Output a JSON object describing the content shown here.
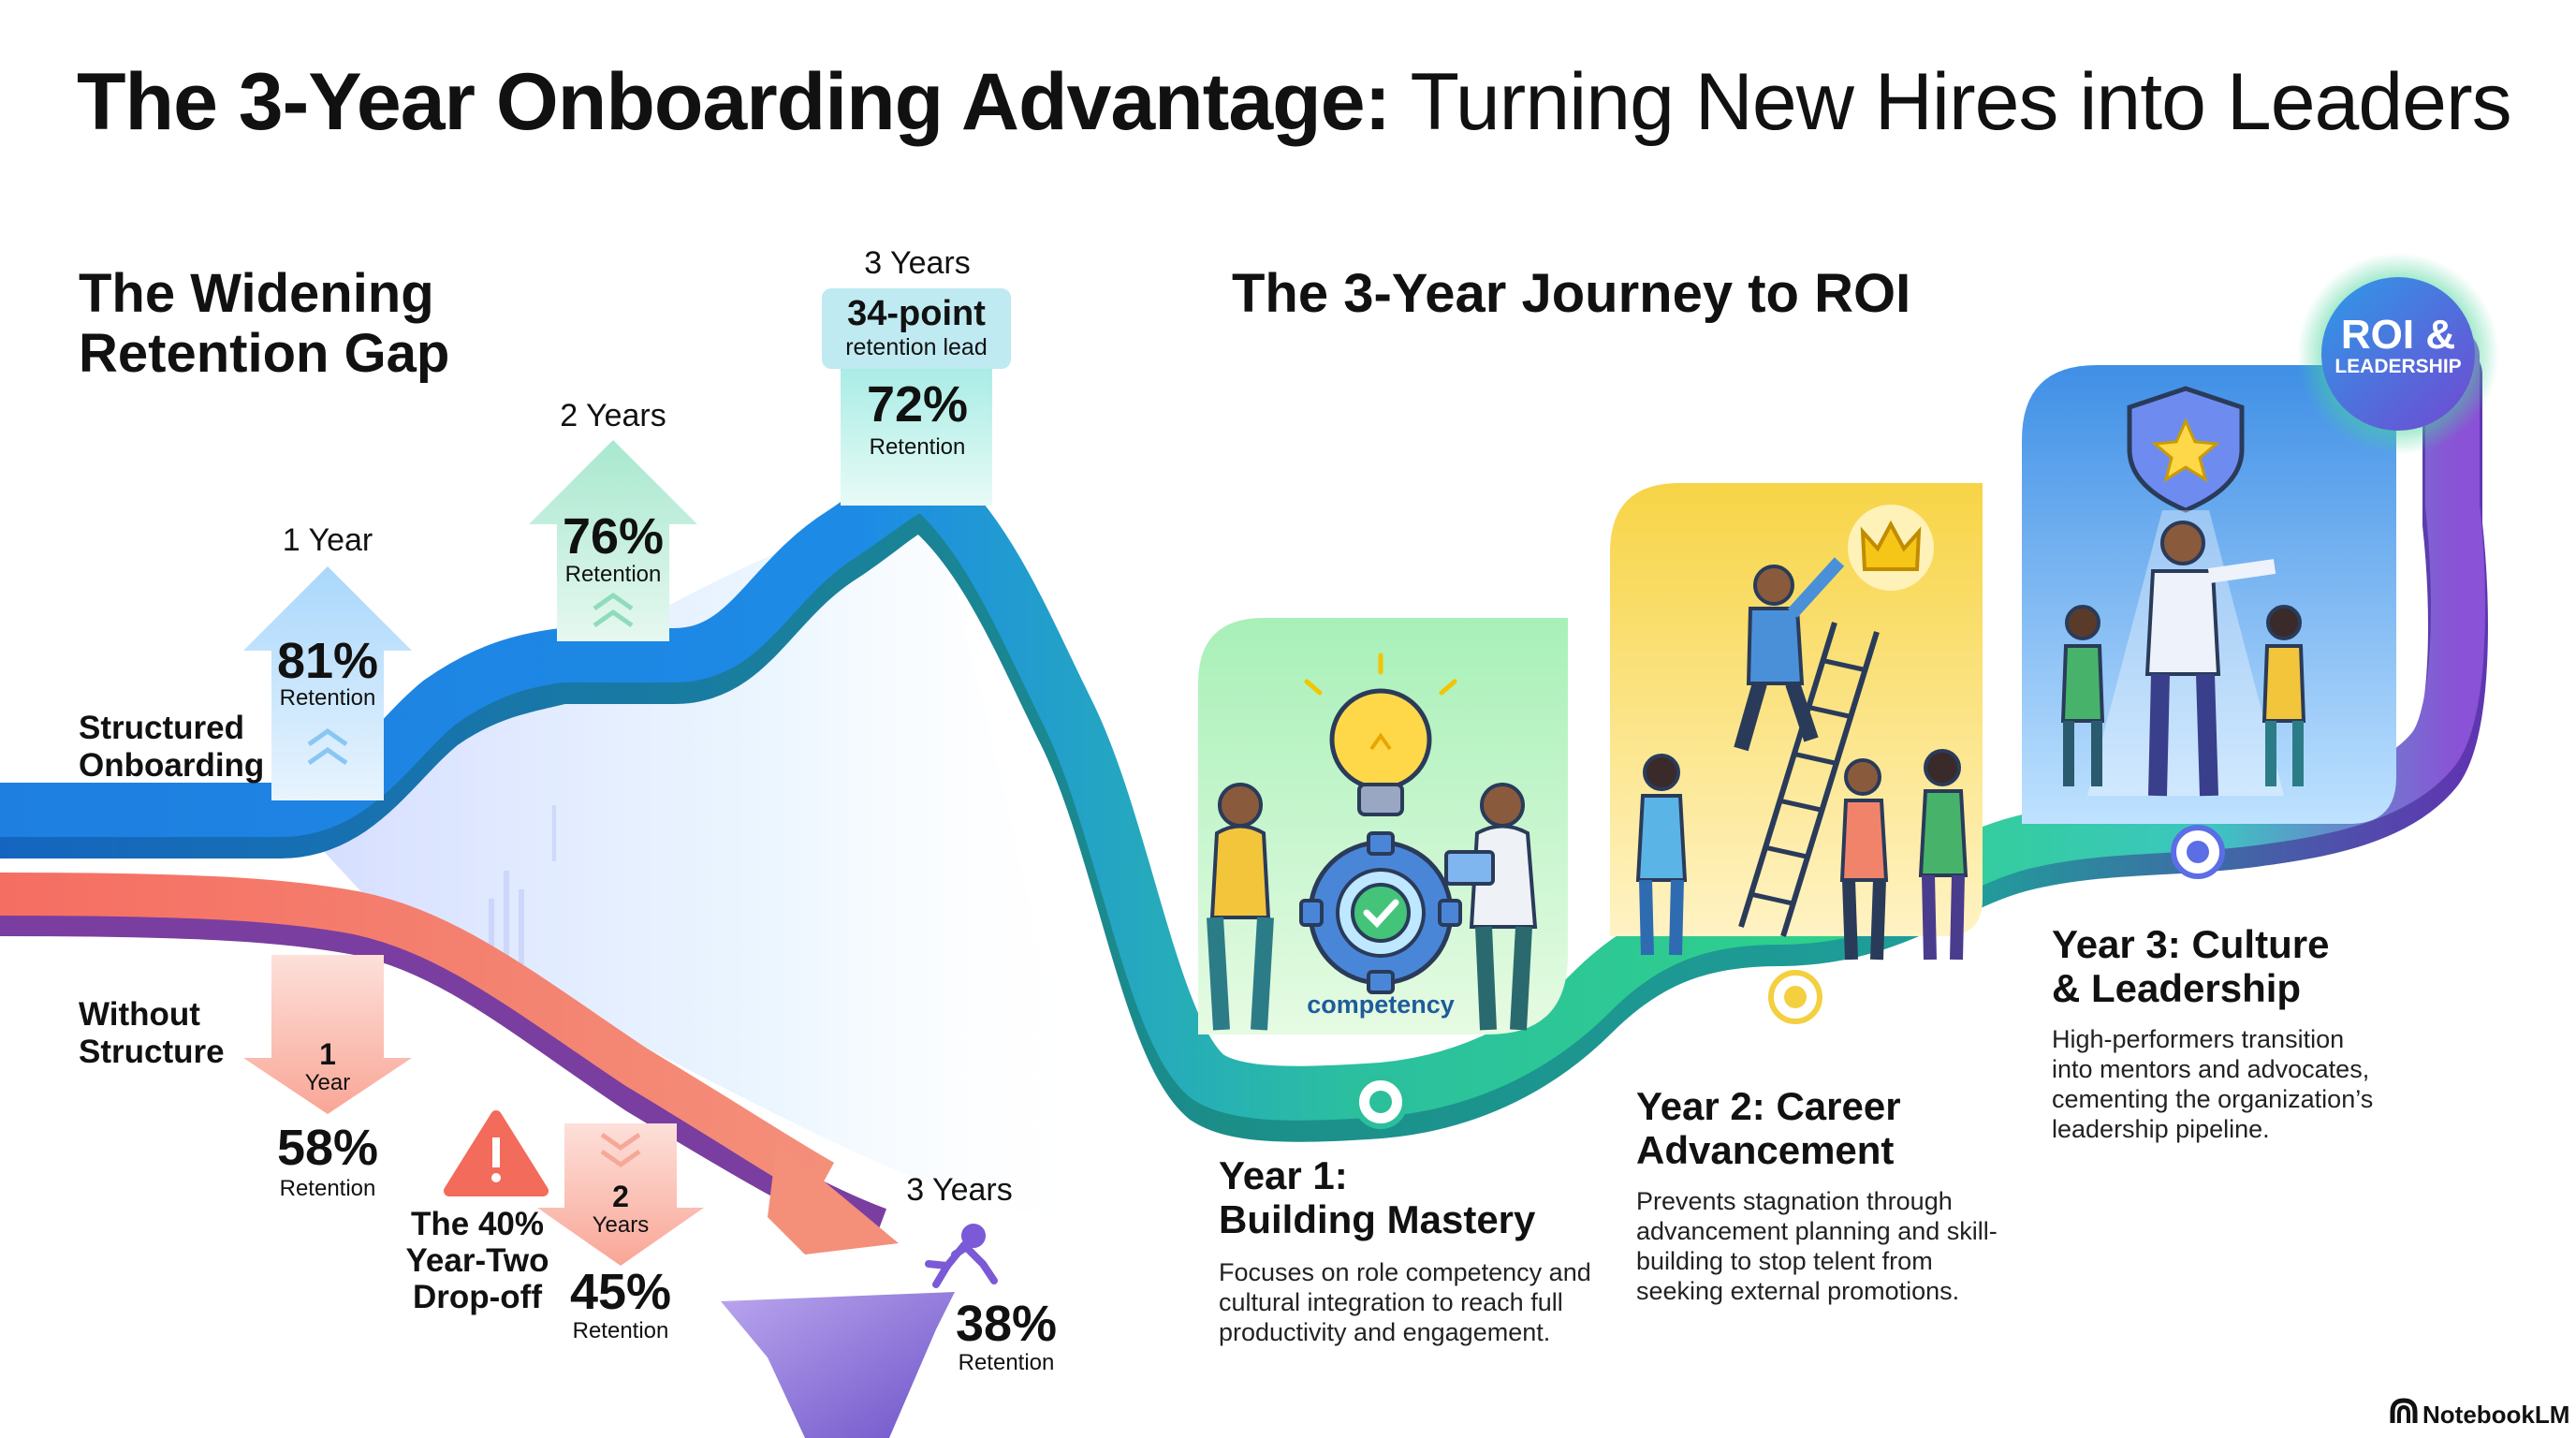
{
  "header": {
    "title_bold": "The 3-Year Onboarding Advantage:",
    "title_rest": " Turning New Hires into Leaders"
  },
  "gap": {
    "heading_line1": "The Widening",
    "heading_line2": "Retention Gap",
    "structured_label_line1": "Structured",
    "structured_label_line2": "Onboarding",
    "without_label_line1": "Without",
    "without_label_line2": "Structure",
    "structured": [
      {
        "period": "1 Year",
        "value": "81%",
        "caption": "Retention"
      },
      {
        "period": "2 Years",
        "value": "76%",
        "caption": "Retention"
      },
      {
        "period": "3 Years",
        "value": "72%",
        "caption": "Retention",
        "lead_value": "34-point",
        "lead_caption": "retention lead"
      }
    ],
    "without": [
      {
        "period_num": "1",
        "period_unit": "Year",
        "value": "58%",
        "caption": "Retention"
      },
      {
        "period_num": "2",
        "period_unit": "Years",
        "value": "45%",
        "caption": "Retention"
      },
      {
        "period": "3 Years",
        "value": "38%",
        "caption": "Retention"
      }
    ],
    "dropoff_line1": "The 40%",
    "dropoff_line2": "Year-Two",
    "dropoff_line3": "Drop-off"
  },
  "journey": {
    "heading": "The 3-Year Journey to ROI",
    "badge_line1": "ROI &",
    "badge_line2": "LEADERSHIP",
    "competency_label": "competency",
    "stages": [
      {
        "title_line1": "Year 1:",
        "title_line2": "Building Mastery",
        "desc_lines": [
          "Focuses on role competency and",
          "cultural integration to reach full",
          "productivity and engagement."
        ]
      },
      {
        "title_line1": "Year 2: Career",
        "title_line2": "Advancement",
        "desc_lines": [
          "Prevents stagnation through",
          "advancement planning and skill-",
          "building to stop telent from",
          "seeking external promotions."
        ]
      },
      {
        "title_line1": "Year 3: Culture",
        "title_line2": "& Leadership",
        "desc_lines": [
          "High-performers transition",
          "into mentors and advocates,",
          "cementing the organization’s",
          "leadership pipeline."
        ]
      }
    ]
  },
  "footer": {
    "brand": "NotebookLM"
  },
  "colors": {
    "structured_blue": "#1e88e5",
    "structured_green": "#2fcf8a",
    "without_coral": "#f26b5b",
    "without_purple": "#7b3fa0",
    "year2_yellow": "#f4cf3f",
    "year3_blue": "#3d8ae0",
    "year3_purple": "#8a52d6"
  }
}
